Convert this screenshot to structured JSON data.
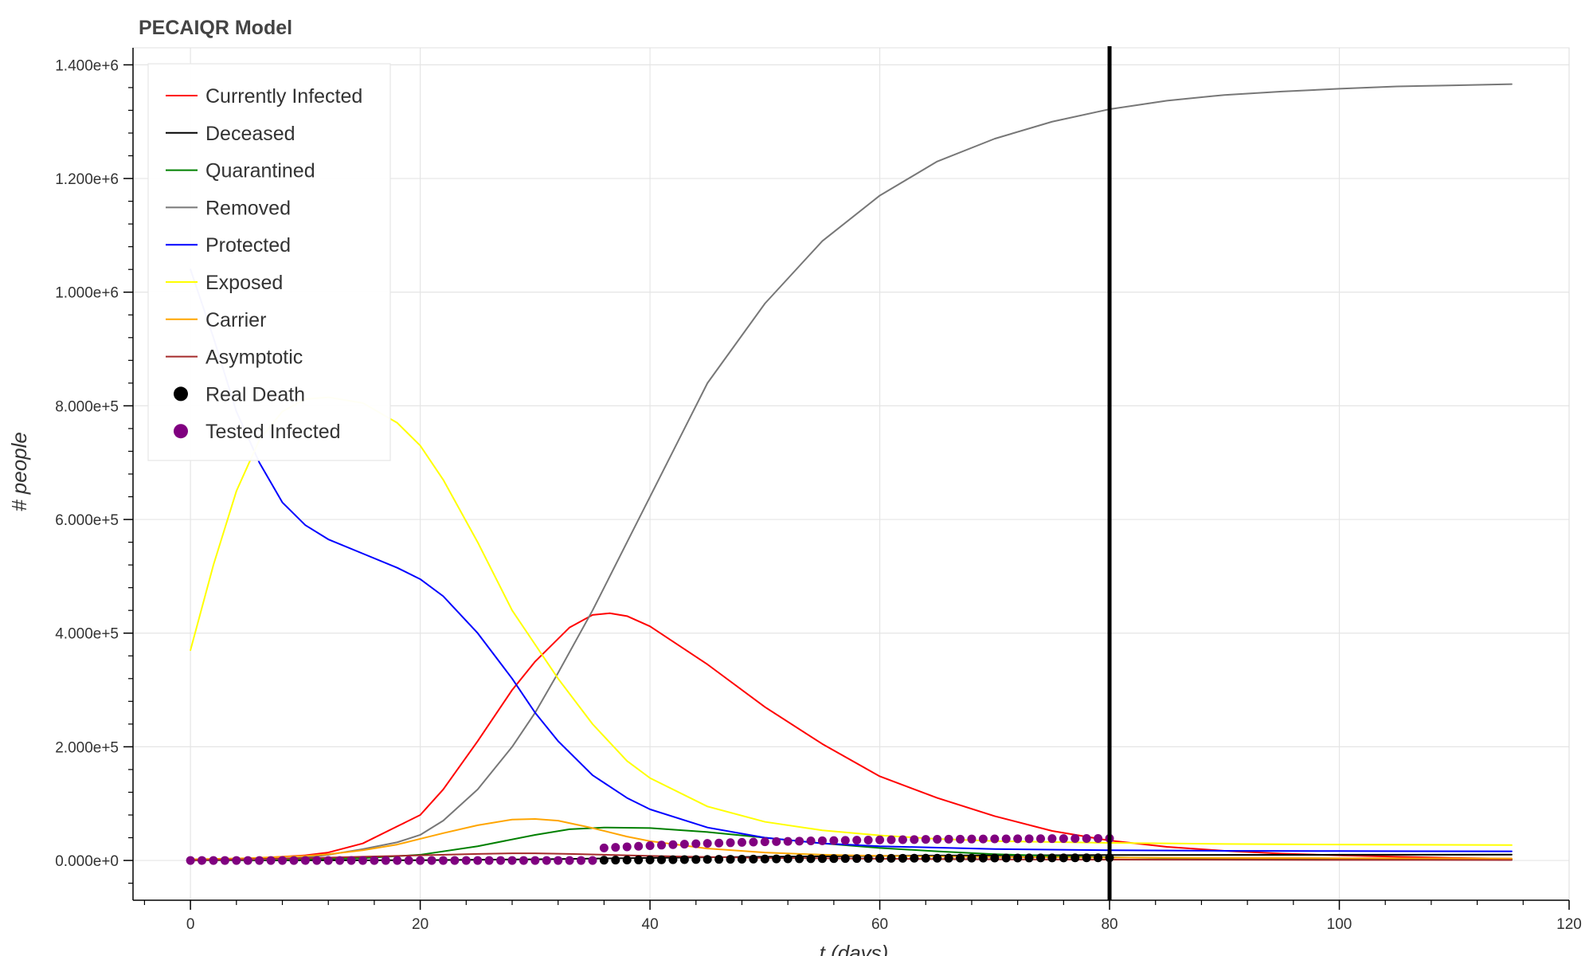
{
  "chart_data": {
    "type": "line",
    "title": "PECAIQR Model",
    "xlabel": "t (days)",
    "ylabel": "# people",
    "xlim": [
      -5,
      120
    ],
    "ylim": [
      -70000,
      1430000
    ],
    "x_ticks": [
      0,
      20,
      40,
      60,
      80,
      100,
      120
    ],
    "x_tick_labels": [
      "0",
      "20",
      "40",
      "60",
      "80",
      "100",
      "120"
    ],
    "y_ticks": [
      0,
      200000,
      400000,
      600000,
      800000,
      1000000,
      1200000,
      1400000
    ],
    "y_tick_labels": [
      "0.000e+0",
      "2.000e+5",
      "4.000e+5",
      "6.000e+5",
      "8.000e+5",
      "1.000e+6",
      "1.200e+6",
      "1.400e+6"
    ],
    "grid": true,
    "legend_position": "top-left",
    "vertical_marker_x": 80,
    "series": [
      {
        "name": "Currently Infected",
        "kind": "line",
        "color": "#ff0000",
        "points": [
          [
            0,
            1000
          ],
          [
            5,
            3000
          ],
          [
            10,
            9000
          ],
          [
            12,
            14000
          ],
          [
            15,
            30000
          ],
          [
            18,
            60000
          ],
          [
            20,
            80000
          ],
          [
            22,
            125000
          ],
          [
            25,
            210000
          ],
          [
            28,
            300000
          ],
          [
            30,
            350000
          ],
          [
            33,
            410000
          ],
          [
            35,
            432000
          ],
          [
            36.5,
            435000
          ],
          [
            38,
            430000
          ],
          [
            40,
            412000
          ],
          [
            45,
            345000
          ],
          [
            50,
            270000
          ],
          [
            55,
            205000
          ],
          [
            60,
            148000
          ],
          [
            65,
            110000
          ],
          [
            70,
            78000
          ],
          [
            75,
            52000
          ],
          [
            80,
            35000
          ],
          [
            85,
            24000
          ],
          [
            90,
            17000
          ],
          [
            95,
            12000
          ],
          [
            100,
            9000
          ],
          [
            105,
            6500
          ],
          [
            110,
            4500
          ],
          [
            115,
            3000
          ]
        ]
      },
      {
        "name": "Deceased",
        "kind": "line",
        "color": "#000000",
        "points": [
          [
            0,
            0
          ],
          [
            20,
            500
          ],
          [
            30,
            2000
          ],
          [
            40,
            4500
          ],
          [
            50,
            6500
          ],
          [
            60,
            8000
          ],
          [
            70,
            9000
          ],
          [
            80,
            9600
          ],
          [
            100,
            10000
          ],
          [
            115,
            10200
          ]
        ]
      },
      {
        "name": "Quarantined",
        "kind": "line",
        "color": "#008000",
        "points": [
          [
            0,
            0
          ],
          [
            10,
            2000
          ],
          [
            15,
            4000
          ],
          [
            20,
            10000
          ],
          [
            25,
            25000
          ],
          [
            30,
            45000
          ],
          [
            33,
            55000
          ],
          [
            36,
            58000
          ],
          [
            40,
            57000
          ],
          [
            45,
            50000
          ],
          [
            50,
            40000
          ],
          [
            55,
            30000
          ],
          [
            60,
            22000
          ],
          [
            65,
            16000
          ],
          [
            70,
            11000
          ],
          [
            75,
            8000
          ],
          [
            80,
            5500
          ],
          [
            90,
            3000
          ],
          [
            100,
            2000
          ],
          [
            115,
            1500
          ]
        ]
      },
      {
        "name": "Removed",
        "kind": "line",
        "color": "#777777",
        "points": [
          [
            0,
            0
          ],
          [
            5,
            1000
          ],
          [
            10,
            5000
          ],
          [
            12,
            10000
          ],
          [
            15,
            20000
          ],
          [
            18,
            32000
          ],
          [
            20,
            45000
          ],
          [
            22,
            70000
          ],
          [
            25,
            125000
          ],
          [
            28,
            200000
          ],
          [
            30,
            260000
          ],
          [
            32,
            330000
          ],
          [
            35,
            440000
          ],
          [
            38,
            560000
          ],
          [
            40,
            640000
          ],
          [
            43,
            760000
          ],
          [
            45,
            840000
          ],
          [
            50,
            980000
          ],
          [
            55,
            1090000
          ],
          [
            60,
            1170000
          ],
          [
            65,
            1230000
          ],
          [
            70,
            1270000
          ],
          [
            75,
            1300000
          ],
          [
            80,
            1322000
          ],
          [
            85,
            1337000
          ],
          [
            90,
            1347000
          ],
          [
            95,
            1353000
          ],
          [
            100,
            1358000
          ],
          [
            105,
            1362000
          ],
          [
            110,
            1364000
          ],
          [
            115,
            1366000
          ]
        ]
      },
      {
        "name": "Protected",
        "kind": "line",
        "color": "#0000ff",
        "points": [
          [
            0,
            1040000
          ],
          [
            2,
            920000
          ],
          [
            4,
            790000
          ],
          [
            6,
            700000
          ],
          [
            8,
            630000
          ],
          [
            10,
            590000
          ],
          [
            12,
            565000
          ],
          [
            15,
            540000
          ],
          [
            18,
            515000
          ],
          [
            20,
            495000
          ],
          [
            22,
            465000
          ],
          [
            25,
            400000
          ],
          [
            28,
            320000
          ],
          [
            30,
            260000
          ],
          [
            32,
            210000
          ],
          [
            35,
            150000
          ],
          [
            38,
            110000
          ],
          [
            40,
            90000
          ],
          [
            45,
            58000
          ],
          [
            50,
            40000
          ],
          [
            55,
            30000
          ],
          [
            60,
            25000
          ],
          [
            70,
            20000
          ],
          [
            80,
            18000
          ],
          [
            90,
            17000
          ],
          [
            100,
            16500
          ],
          [
            115,
            16000
          ]
        ]
      },
      {
        "name": "Exposed",
        "kind": "line",
        "color": "#ffff00",
        "points": [
          [
            0,
            370000
          ],
          [
            2,
            520000
          ],
          [
            4,
            650000
          ],
          [
            6,
            740000
          ],
          [
            8,
            790000
          ],
          [
            10,
            812000
          ],
          [
            12,
            815000
          ],
          [
            15,
            805000
          ],
          [
            18,
            770000
          ],
          [
            20,
            730000
          ],
          [
            22,
            670000
          ],
          [
            25,
            560000
          ],
          [
            28,
            440000
          ],
          [
            30,
            380000
          ],
          [
            32,
            320000
          ],
          [
            35,
            240000
          ],
          [
            38,
            175000
          ],
          [
            40,
            145000
          ],
          [
            45,
            95000
          ],
          [
            50,
            68000
          ],
          [
            55,
            53000
          ],
          [
            60,
            44000
          ],
          [
            65,
            38000
          ],
          [
            70,
            34000
          ],
          [
            80,
            31000
          ],
          [
            90,
            29000
          ],
          [
            100,
            28000
          ],
          [
            115,
            27000
          ]
        ]
      },
      {
        "name": "Carrier",
        "kind": "line",
        "color": "#ffa500",
        "points": [
          [
            0,
            2000
          ],
          [
            5,
            4000
          ],
          [
            10,
            8000
          ],
          [
            12,
            11000
          ],
          [
            15,
            18000
          ],
          [
            18,
            28000
          ],
          [
            20,
            38000
          ],
          [
            22,
            48000
          ],
          [
            25,
            62000
          ],
          [
            28,
            72000
          ],
          [
            30,
            73000
          ],
          [
            32,
            70000
          ],
          [
            35,
            57000
          ],
          [
            38,
            42000
          ],
          [
            40,
            34000
          ],
          [
            45,
            21000
          ],
          [
            50,
            14000
          ],
          [
            55,
            10000
          ],
          [
            60,
            8000
          ],
          [
            70,
            6000
          ],
          [
            80,
            5000
          ],
          [
            100,
            4000
          ],
          [
            115,
            3500
          ]
        ]
      },
      {
        "name": "Asymptotic",
        "kind": "line",
        "color": "#a52a2a",
        "points": [
          [
            0,
            500
          ],
          [
            5,
            2000
          ],
          [
            10,
            4000
          ],
          [
            15,
            6500
          ],
          [
            20,
            9000
          ],
          [
            25,
            11500
          ],
          [
            28,
            12500
          ],
          [
            30,
            12500
          ],
          [
            33,
            11500
          ],
          [
            36,
            10000
          ],
          [
            40,
            8000
          ],
          [
            45,
            6000
          ],
          [
            50,
            4500
          ],
          [
            60,
            3000
          ],
          [
            70,
            2000
          ],
          [
            80,
            1500
          ],
          [
            100,
            1000
          ],
          [
            115,
            800
          ]
        ]
      },
      {
        "name": "Real Death",
        "kind": "scatter",
        "color": "#000000",
        "x": [
          36,
          37,
          38,
          39,
          40,
          41,
          42,
          43,
          44,
          45,
          46,
          47,
          48,
          49,
          50,
          51,
          52,
          53,
          54,
          55,
          56,
          57,
          58,
          59,
          60,
          61,
          62,
          63,
          64,
          65,
          66,
          67,
          68,
          69,
          70,
          71,
          72,
          73,
          74,
          75,
          76,
          77,
          78,
          79,
          80
        ],
        "y": [
          500,
          600,
          750,
          900,
          1050,
          1200,
          1350,
          1500,
          1650,
          1800,
          1950,
          2100,
          2250,
          2400,
          2550,
          2700,
          2850,
          3000,
          3100,
          3200,
          3300,
          3400,
          3500,
          3600,
          3700,
          3800,
          3850,
          3900,
          3950,
          4000,
          4050,
          4100,
          4150,
          4200,
          4250,
          4300,
          4350,
          4400,
          4450,
          4500,
          4550,
          4600,
          4650,
          4700,
          4750
        ]
      },
      {
        "name": "Tested Infected",
        "kind": "scatter",
        "color": "#800080",
        "x": [
          0,
          1,
          2,
          3,
          4,
          5,
          6,
          7,
          8,
          9,
          10,
          11,
          12,
          13,
          14,
          15,
          16,
          17,
          18,
          19,
          20,
          21,
          22,
          23,
          24,
          25,
          26,
          27,
          28,
          29,
          30,
          31,
          32,
          33,
          34,
          35,
          36,
          37,
          38,
          39,
          40,
          41,
          42,
          43,
          44,
          45,
          46,
          47,
          48,
          49,
          50,
          51,
          52,
          53,
          54,
          55,
          56,
          57,
          58,
          59,
          60,
          61,
          62,
          63,
          64,
          65,
          66,
          67,
          68,
          69,
          70,
          71,
          72,
          73,
          74,
          75,
          76,
          77,
          78,
          79,
          80
        ],
        "y": [
          0,
          0,
          0,
          0,
          0,
          0,
          0,
          0,
          0,
          0,
          0,
          0,
          0,
          0,
          0,
          0,
          0,
          0,
          0,
          0,
          0,
          0,
          0,
          0,
          0,
          0,
          0,
          0,
          0,
          0,
          0,
          0,
          0,
          0,
          0,
          0,
          22000,
          23000,
          24000,
          25000,
          26000,
          27000,
          27800,
          28600,
          29400,
          30000,
          30600,
          31200,
          31800,
          32300,
          32800,
          33200,
          33600,
          34000,
          34400,
          34700,
          35000,
          35300,
          35600,
          35900,
          36200,
          36400,
          36600,
          36800,
          37000,
          37200,
          37400,
          37500,
          37700,
          37800,
          37900,
          38000,
          38100,
          38200,
          38300,
          38400,
          38500,
          38600,
          38700,
          38700,
          38800
        ]
      }
    ]
  }
}
